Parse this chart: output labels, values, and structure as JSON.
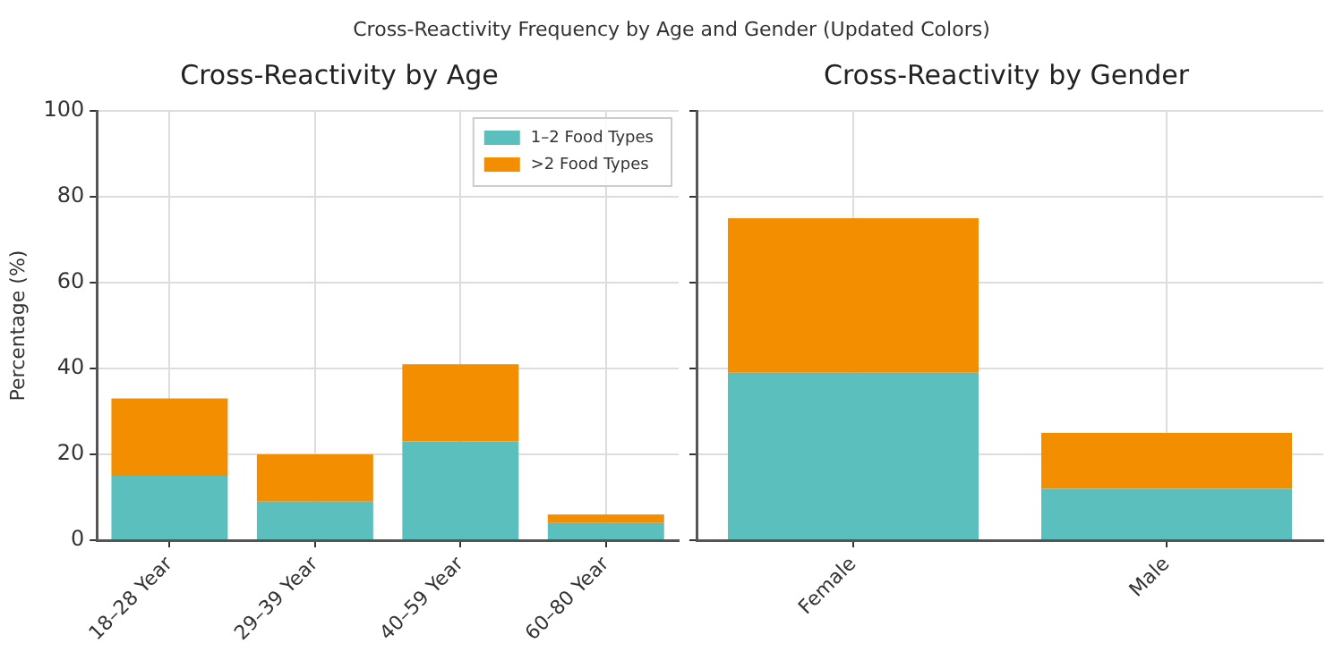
{
  "chart_data": [
    {
      "type": "bar",
      "title": "Cross-Reactivity by Age",
      "annotations": [
        "Cross-Reactivity Frequency by Age and Gender (Updated Colors)"
      ],
      "ylabel": "Percentage (%)",
      "categories": [
        "18–28 Year",
        "29–39 Year",
        "40–59 Year",
        "60–80 Year"
      ],
      "stacked": true,
      "series": [
        {
          "name": "1–2 Food Types",
          "color": "#5bbfbd",
          "values": [
            15,
            9,
            23,
            4
          ]
        },
        {
          "name": ">2 Food Types",
          "color": "#f28e00",
          "values": [
            18,
            11,
            18,
            2
          ]
        }
      ],
      "ylim": [
        0,
        100
      ],
      "yticks": [
        0,
        20,
        40,
        60,
        80,
        100
      ],
      "grid": true,
      "legend": "top right"
    },
    {
      "type": "bar",
      "title": "Cross-Reactivity by Gender",
      "categories": [
        "Female",
        "Male"
      ],
      "stacked": true,
      "series": [
        {
          "color": "#5bbfbd",
          "values": [
            39,
            12
          ]
        },
        {
          "color": "#f28e00",
          "values": [
            36,
            13
          ]
        }
      ],
      "ylim": [
        0,
        100
      ],
      "yticks": [
        0,
        20,
        40,
        60,
        80,
        100
      ],
      "grid": true,
      "tick_labels": "x"
    }
  ]
}
